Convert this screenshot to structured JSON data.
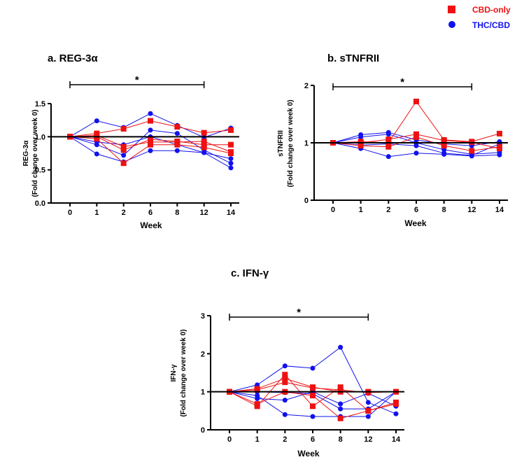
{
  "legend": {
    "cbd_label": "CBD-only",
    "thc_label": "THC/CBD",
    "cbd_color": "#ee1111",
    "thc_color": "#1111ee"
  },
  "chart_data": [
    {
      "id": "a",
      "type": "line",
      "title": "a. REG-3α",
      "xlabel": "Week",
      "ylabel_line1": "REG-3α",
      "ylabel_line2": "(Fold change over week 0)",
      "categories": [
        "0",
        "1",
        "2",
        "6",
        "8",
        "12",
        "14"
      ],
      "ylim": [
        0,
        1.5
      ],
      "yticks": [
        "0.0",
        "0.5",
        "1.0",
        "1.5"
      ],
      "significance": {
        "from": "0",
        "to": "12",
        "label": "*"
      },
      "series": [
        {
          "name": "CBD-only",
          "group": "cbd",
          "values": [
            1.0,
            1.05,
            1.12,
            1.24,
            1.15,
            1.06,
            1.1
          ]
        },
        {
          "name": "CBD-only",
          "group": "cbd",
          "values": [
            1.0,
            1.0,
            0.8,
            0.96,
            0.93,
            0.88,
            0.88
          ]
        },
        {
          "name": "CBD-only",
          "group": "cbd",
          "values": [
            1.0,
            0.97,
            0.6,
            0.88,
            0.88,
            0.84,
            0.75
          ]
        },
        {
          "name": "CBD-only",
          "group": "cbd",
          "values": [
            1.0,
            1.02,
            0.85,
            0.92,
            0.92,
            0.93,
            0.77
          ]
        },
        {
          "name": "THC/CBD",
          "group": "thc",
          "values": [
            1.0,
            1.24,
            1.14,
            1.35,
            1.17,
            0.99,
            1.13
          ]
        },
        {
          "name": "THC/CBD",
          "group": "thc",
          "values": [
            1.0,
            0.74,
            0.62,
            0.79,
            0.79,
            0.76,
            0.53
          ]
        },
        {
          "name": "THC/CBD",
          "group": "thc",
          "values": [
            1.0,
            0.88,
            0.72,
            1.1,
            1.05,
            0.8,
            0.6
          ]
        },
        {
          "name": "THC/CBD",
          "group": "thc",
          "values": [
            1.0,
            0.92,
            0.88,
            1.0,
            0.88,
            0.76,
            0.67
          ]
        }
      ]
    },
    {
      "id": "b",
      "type": "line",
      "title": "b. sTNFRII",
      "xlabel": "Week",
      "ylabel_line1": "sTNFRII",
      "ylabel_line2": "(Fold change over week 0)",
      "categories": [
        "0",
        "1",
        "2",
        "6",
        "8",
        "12",
        "14"
      ],
      "ylim": [
        0,
        2
      ],
      "yticks": [
        "0",
        "1",
        "2"
      ],
      "significance": {
        "from": "0",
        "to": "12",
        "label": "*"
      },
      "series": [
        {
          "name": "CBD-only",
          "group": "cbd",
          "values": [
            1.0,
            1.02,
            1.0,
            1.72,
            1.05,
            1.02,
            1.16
          ]
        },
        {
          "name": "CBD-only",
          "group": "cbd",
          "values": [
            1.0,
            1.0,
            1.06,
            1.15,
            1.04,
            1.01,
            0.9
          ]
        },
        {
          "name": "CBD-only",
          "group": "cbd",
          "values": [
            1.0,
            0.95,
            0.93,
            1.1,
            0.95,
            0.86,
            0.93
          ]
        },
        {
          "name": "THC/CBD",
          "group": "thc",
          "values": [
            1.0,
            1.14,
            1.18,
            1.05,
            0.98,
            0.95,
            1.02
          ]
        },
        {
          "name": "THC/CBD",
          "group": "thc",
          "values": [
            1.0,
            0.9,
            0.76,
            0.82,
            0.8,
            0.77,
            0.79
          ]
        },
        {
          "name": "THC/CBD",
          "group": "thc",
          "values": [
            1.0,
            1.1,
            1.15,
            1.0,
            0.88,
            0.8,
            0.83
          ]
        },
        {
          "name": "THC/CBD",
          "group": "thc",
          "values": [
            1.0,
            0.96,
            0.98,
            0.95,
            0.82,
            0.78,
            0.98
          ]
        }
      ]
    },
    {
      "id": "c",
      "type": "line",
      "title": "c. IFN-γ",
      "xlabel": "Week",
      "ylabel_line1": "IFN-γ",
      "ylabel_line2": "(Fold change over week 0)",
      "categories": [
        "0",
        "1",
        "2",
        "6",
        "8",
        "12",
        "14"
      ],
      "ylim": [
        0,
        3
      ],
      "yticks": [
        "0",
        "1",
        "2",
        "3"
      ],
      "significance": {
        "from": "0",
        "to": "12",
        "label": "*"
      },
      "series": [
        {
          "name": "CBD-only",
          "group": "cbd",
          "values": [
            1.0,
            0.62,
            1.45,
            0.62,
            1.12,
            0.5,
            0.72
          ]
        },
        {
          "name": "CBD-only",
          "group": "cbd",
          "values": [
            1.0,
            1.08,
            1.35,
            1.12,
            1.0,
            1.0,
            1.0
          ]
        },
        {
          "name": "CBD-only",
          "group": "cbd",
          "values": [
            1.0,
            0.68,
            1.0,
            0.9,
            0.3,
            0.5,
            0.68
          ]
        },
        {
          "name": "CBD-only",
          "group": "cbd",
          "values": [
            1.0,
            1.05,
            1.25,
            1.1,
            1.05,
            0.98,
            1.0
          ]
        },
        {
          "name": "THC/CBD",
          "group": "thc",
          "values": [
            1.0,
            1.18,
            1.68,
            1.62,
            2.17,
            0.72,
            0.42
          ]
        },
        {
          "name": "THC/CBD",
          "group": "thc",
          "values": [
            1.0,
            0.9,
            0.4,
            0.35,
            0.35,
            0.35,
            1.0
          ]
        },
        {
          "name": "THC/CBD",
          "group": "thc",
          "values": [
            1.0,
            0.82,
            0.78,
            1.0,
            0.68,
            0.96,
            0.62
          ]
        },
        {
          "name": "THC/CBD",
          "group": "thc",
          "values": [
            1.0,
            1.0,
            0.98,
            0.95,
            0.55,
            0.55,
            1.0
          ]
        }
      ]
    }
  ]
}
